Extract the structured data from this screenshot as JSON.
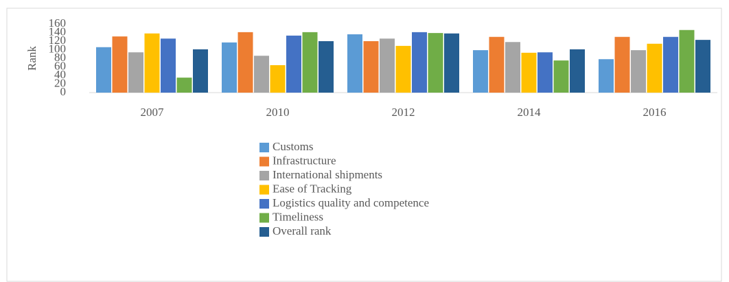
{
  "chart_data": {
    "type": "bar",
    "y_label": "Rank",
    "categories": [
      "2007",
      "2010",
      "2012",
      "2014",
      "2016"
    ],
    "series": [
      {
        "name": "Customs",
        "color": "#5b9bd5",
        "values": [
          106,
          117,
          136,
          99,
          78
        ]
      },
      {
        "name": "Infrastructure",
        "color": "#ed7d31",
        "values": [
          131,
          141,
          120,
          130,
          130
        ]
      },
      {
        "name": "International shipments",
        "color": "#a5a5a5",
        "values": [
          94,
          86,
          126,
          118,
          99
        ]
      },
      {
        "name": "Ease of Tracking",
        "color": "#ffc000",
        "values": [
          138,
          64,
          109,
          93,
          114
        ]
      },
      {
        "name": "Logistics quality and competence",
        "color": "#4472c4",
        "values": [
          126,
          133,
          141,
          94,
          130
        ]
      },
      {
        "name": "Timeliness",
        "color": "#70ad47",
        "values": [
          35,
          141,
          139,
          75,
          146
        ]
      },
      {
        "name": "Overall rank",
        "color": "#255e91",
        "values": [
          101,
          120,
          138,
          101,
          123
        ]
      }
    ],
    "ylim": [
      0,
      160
    ],
    "yticks": [
      0,
      20,
      40,
      60,
      80,
      100,
      120,
      140,
      160
    ],
    "grid": false,
    "legend": "bottom"
  }
}
